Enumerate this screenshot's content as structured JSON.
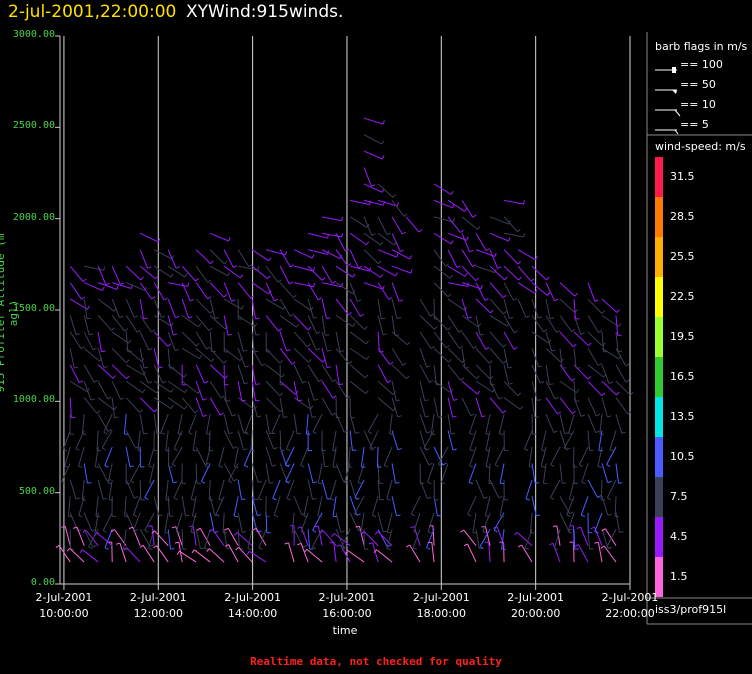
{
  "header": {
    "timestamp": "2-jul-2001,22:00:00",
    "title": "XYWind:915winds."
  },
  "footer": "Realtime data, not checked for quality",
  "station": "iss3/prof915l",
  "barb_legend": {
    "title": "barb flags in m/s",
    "entries": [
      "== 100",
      "== 50",
      "== 10",
      "== 5"
    ]
  },
  "speed_legend": {
    "title": "wind-speed: m/s",
    "labels": [
      "31.5",
      "28.5",
      "25.5",
      "22.5",
      "19.5",
      "16.5",
      "13.5",
      "10.5",
      "7.5",
      "4.5",
      "1.5"
    ],
    "colors": [
      "#ff1a4a",
      "#ff7b00",
      "#ffb000",
      "#ffff00",
      "#9cff33",
      "#2ecc2e",
      "#00e5e5",
      "#4a5cff",
      "#3a3f58",
      "#9a1aff",
      "#ff66dd"
    ]
  },
  "chart_data": {
    "type": "scatter",
    "title": "XYWind:915winds.",
    "xlabel": "time",
    "ylabel": "915 Profiler Altitude (m agl)",
    "ylim": [
      0,
      3000
    ],
    "xlim": [
      "2-Jul-2001 09:55:00",
      "2-Jul-2001 22:00:00"
    ],
    "grid": "vertical lines at 2-hour ticks",
    "yticks": [
      "0.00",
      "500.00",
      "1000.00",
      "1500.00",
      "2000.00",
      "2500.00",
      "3000.00"
    ],
    "xticks": [
      {
        "date": "2-Jul-2001",
        "time": "10:00:00"
      },
      {
        "date": "2-Jul-2001",
        "time": "12:00:00"
      },
      {
        "date": "2-Jul-2001",
        "time": "14:00:00"
      },
      {
        "date": "2-Jul-2001",
        "time": "16:00:00"
      },
      {
        "date": "2-Jul-2001",
        "time": "18:00:00"
      },
      {
        "date": "2-Jul-2001",
        "time": "20:00:00"
      },
      {
        "date": "2-Jul-2001",
        "time": "22:00:00"
      }
    ],
    "tops_m": [
      1800,
      1800,
      1800,
      1750,
      1800,
      1950,
      1850,
      1850,
      1800,
      1900,
      1950,
      1850,
      1850,
      1850,
      1850,
      1850,
      1850,
      1950,
      2050,
      2000,
      2150,
      2550,
      2250,
      2150,
      2050,
      2100,
      2250,
      2150,
      2150,
      2000,
      2050,
      2150,
      1850,
      1750,
      1700,
      1650,
      1600,
      1650,
      1600,
      1550,
      1600
    ],
    "gaps": [
      {
        "time": "14:36",
        "from_m": 0,
        "to_m": 450
      },
      {
        "time": "16:18",
        "from_m": 850,
        "to_m": 1600
      },
      {
        "time": "17:12",
        "from_m": 1000,
        "to_m": 2000
      },
      {
        "time": "17:24",
        "from_m": 0,
        "to_m": 1000
      },
      {
        "time": "17:36",
        "from_m": 1600,
        "to_m": 2200
      },
      {
        "time": "18:06",
        "from_m": 0,
        "to_m": 650
      },
      {
        "time": "18:18",
        "from_m": 200,
        "to_m": 950
      },
      {
        "time": "18:30",
        "from_m": 0,
        "to_m": 900
      },
      {
        "time": "19:36",
        "from_m": 0,
        "to_m": 1500
      },
      {
        "time": "20:06",
        "from_m": 0,
        "to_m": 600
      }
    ],
    "speed_field": [
      {
        "from_m": 0,
        "to_m": 300,
        "speed_ms": 3,
        "dir_deg": 120
      },
      {
        "from_m": 300,
        "to_m": 1000,
        "speed_ms": 8,
        "dir_deg": 270
      },
      {
        "from_m": 1000,
        "to_m": 1600,
        "speed_ms": 7,
        "dir_deg": 300
      },
      {
        "from_m": 1600,
        "to_m": 2600,
        "speed_ms": 5,
        "dir_deg": 320
      }
    ]
  }
}
